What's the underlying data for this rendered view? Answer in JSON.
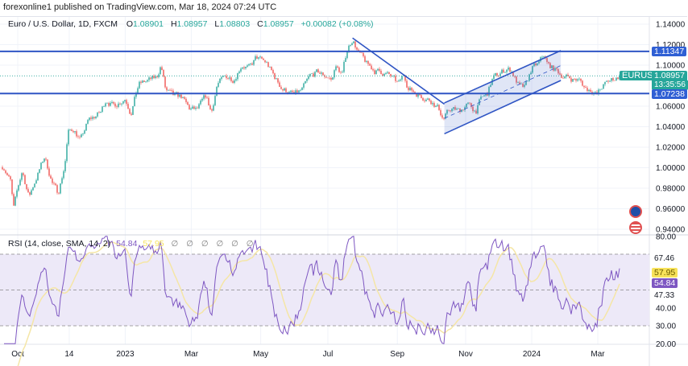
{
  "header": {
    "published": "forexonline1 published on TradingView.com, Mar 18, 2024 07:24 UTC"
  },
  "legend": {
    "symbol": "Euro / U.S. Dollar, 1D, FXCM",
    "o_label": "O",
    "open": "1.08901",
    "h_label": "H",
    "high": "1.08957",
    "l_label": "L",
    "low": "1.08803",
    "c_label": "C",
    "close": "1.08957",
    "change": "+0.00082 (+0.08%)"
  },
  "rsi_legend": {
    "title": "RSI (14, close, SMA, 14, 2)",
    "rsi": "54.84",
    "sma": "57.95",
    "na": [
      "∅",
      "∅",
      "∅",
      "∅",
      "∅",
      "∅"
    ]
  },
  "price_tags": {
    "symbol_label": "EURUSD",
    "current": "1.08957",
    "countdown": "13:35:56",
    "level_upper": "1.11347",
    "level_lower": "1.07238"
  },
  "rsi_tags": {
    "upper_val": "67.46",
    "sma": "57.95",
    "rsi": "54.84",
    "lower_val": "47.33"
  },
  "icons": [
    "eu-flag-icon",
    "us-flag-icon"
  ],
  "colors": {
    "up": "#26a69a",
    "down": "#ef5350",
    "lines": "#2f55c4",
    "rsi": "#7e57c2",
    "rsi_sma": "#f5e6a6",
    "tag_green": "#26a69a",
    "tag_blue": "#2f5fd4"
  },
  "chart_data": {
    "type": "candlestick",
    "title": "Euro / U.S. Dollar, 1D, FXCM",
    "ylim": [
      0.93,
      1.145
    ],
    "y_ticks": [
      "1.14000",
      "1.12000",
      "1.10000",
      "1.06000",
      "1.04000",
      "1.02000",
      "1.00000",
      "0.98000",
      "0.96000",
      "0.94000"
    ],
    "y_tick_values": [
      1.14,
      1.12,
      1.1,
      1.06,
      1.04,
      1.02,
      1.0,
      0.98,
      0.96,
      0.94
    ],
    "x_ticks": [
      {
        "label": "Oct",
        "day": 0
      },
      {
        "label": "14",
        "day": 46
      },
      {
        "label": "2023",
        "day": 96
      },
      {
        "label": "Mar",
        "day": 155
      },
      {
        "label": "May",
        "day": 217
      },
      {
        "label": "Jul",
        "day": 277
      },
      {
        "label": "Sep",
        "day": 339
      },
      {
        "label": "Nov",
        "day": 400
      },
      {
        "label": "2024",
        "day": 459
      },
      {
        "label": "Mar",
        "day": 518
      }
    ],
    "horizontal_levels": [
      1.11347,
      1.07238
    ],
    "current_price": 1.08957,
    "close_anchors": [
      [
        -16,
        1.003
      ],
      [
        -12,
        1.0004
      ],
      [
        -6,
        0.9855
      ],
      [
        -4,
        0.958
      ],
      [
        0,
        0.9792
      ],
      [
        4,
        0.9973
      ],
      [
        10,
        0.9714
      ],
      [
        14,
        0.9831
      ],
      [
        24,
        1.0106
      ],
      [
        31,
        0.9847
      ],
      [
        36,
        0.9753
      ],
      [
        42,
        1.0027
      ],
      [
        45,
        1.0341
      ],
      [
        50,
        1.038
      ],
      [
        56,
        1.0263
      ],
      [
        63,
        1.0459
      ],
      [
        74,
        1.0537
      ],
      [
        79,
        1.0671
      ],
      [
        85,
        1.06
      ],
      [
        96,
        1.0678
      ],
      [
        101,
        1.0537
      ],
      [
        108,
        1.0812
      ],
      [
        117,
        1.0851
      ],
      [
        124,
        1.0875
      ],
      [
        128,
        1.1008
      ],
      [
        132,
        1.0757
      ],
      [
        139,
        1.0694
      ],
      [
        146,
        1.0694
      ],
      [
        153,
        1.0576
      ],
      [
        160,
        1.0561
      ],
      [
        168,
        1.0694
      ],
      [
        173,
        1.0537
      ],
      [
        178,
        1.0812
      ],
      [
        186,
        1.089
      ],
      [
        193,
        1.0867
      ],
      [
        200,
        1.1008
      ],
      [
        207,
        1.0969
      ],
      [
        213,
        1.1071
      ],
      [
        222,
        1.1024
      ],
      [
        229,
        1.089
      ],
      [
        236,
        1.0773
      ],
      [
        247,
        1.071
      ],
      [
        254,
        1.0757
      ],
      [
        261,
        1.089
      ],
      [
        268,
        1.0929
      ],
      [
        276,
        1.089
      ],
      [
        281,
        1.0851
      ],
      [
        283,
        1.0992
      ],
      [
        290,
        1.0914
      ],
      [
        294,
        1.1149
      ],
      [
        299,
        1.1259
      ],
      [
        304,
        1.1125
      ],
      [
        312,
        1.1008
      ],
      [
        319,
        1.0945
      ],
      [
        326,
        1.0929
      ],
      [
        333,
        1.089
      ],
      [
        340,
        1.0812
      ],
      [
        345,
        1.0914
      ],
      [
        349,
        1.0773
      ],
      [
        355,
        1.0733
      ],
      [
        362,
        1.0694
      ],
      [
        369,
        1.0655
      ],
      [
        376,
        1.0576
      ],
      [
        380,
        1.0475
      ],
      [
        387,
        1.0576
      ],
      [
        394,
        1.0553
      ],
      [
        401,
        1.0616
      ],
      [
        409,
        1.0553
      ],
      [
        414,
        1.0678
      ],
      [
        419,
        1.071
      ],
      [
        424,
        1.0867
      ],
      [
        430,
        1.0914
      ],
      [
        437,
        1.0969
      ],
      [
        441,
        1.0945
      ],
      [
        445,
        1.0851
      ],
      [
        448,
        1.0788
      ],
      [
        453,
        1.0773
      ],
      [
        459,
        1.0969
      ],
      [
        465,
        1.1008
      ],
      [
        470,
        1.1102
      ],
      [
        473,
        1.1008
      ],
      [
        481,
        1.0945
      ],
      [
        488,
        1.089
      ],
      [
        495,
        1.0867
      ],
      [
        502,
        1.0851
      ],
      [
        507,
        1.0773
      ],
      [
        513,
        1.0757
      ],
      [
        517,
        1.071
      ],
      [
        522,
        1.0788
      ],
      [
        527,
        1.0835
      ],
      [
        532,
        1.0867
      ],
      [
        538,
        1.08957
      ]
    ],
    "trendline": {
      "from": [
        299,
        1.1265
      ],
      "to": [
        381,
        1.062
      ]
    },
    "channel": {
      "start_day": 381,
      "end_day": 485,
      "upper": [
        1.0632,
        1.1142
      ],
      "lower": [
        1.0331,
        1.0851
      ]
    },
    "rsi": {
      "period": 14,
      "sma_period": 14,
      "last_rsi": 54.84,
      "last_sma": 57.95,
      "ylim": [
        18,
        82
      ],
      "bands": [
        70,
        50,
        30
      ],
      "y_ticks": [
        "80.00",
        "40.00",
        "30.00",
        "20.00"
      ],
      "y_tick_values": [
        80,
        40,
        30,
        20
      ],
      "band_labels_visible": [
        67.46,
        47.33
      ]
    }
  }
}
